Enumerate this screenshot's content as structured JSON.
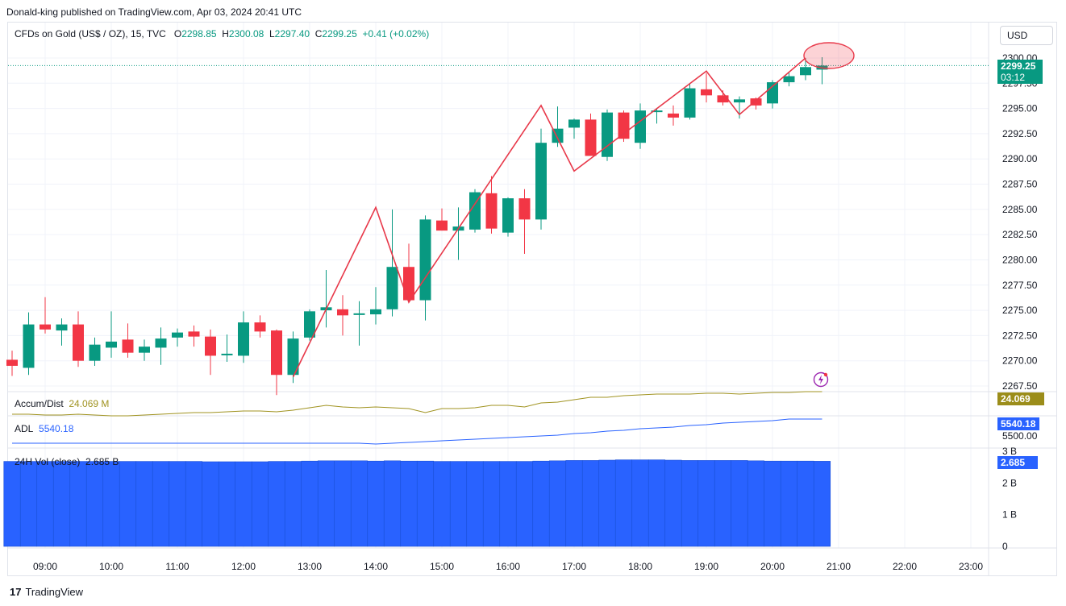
{
  "header": {
    "published": "Donald-king published on TradingView.com, Apr 03, 2024 20:41 UTC",
    "symbol": "CFDs on Gold (US$ / OZ), 15, TVC",
    "o_label": "O",
    "o_value": "2298.85",
    "h_label": "H",
    "h_value": "2300.08",
    "l_label": "L",
    "l_value": "2297.40",
    "c_label": "C",
    "c_value": "2299.25",
    "change": "+0.41 (+0.02%)"
  },
  "currency_button": "USD",
  "price_badge": {
    "price": "2299.25",
    "countdown": "03:12",
    "color": "#089981"
  },
  "price_axis": [
    "2300.00",
    "2297.50",
    "2295.00",
    "2292.50",
    "2290.00",
    "2287.50",
    "2285.00",
    "2282.50",
    "2280.00",
    "2277.50",
    "2275.00",
    "2272.50",
    "2270.00",
    "2267.50"
  ],
  "time_axis": [
    "09:00",
    "10:00",
    "11:00",
    "12:00",
    "13:00",
    "14:00",
    "15:00",
    "16:00",
    "17:00",
    "18:00",
    "19:00",
    "20:00",
    "21:00",
    "22:00",
    "23:00"
  ],
  "indicators": {
    "accum": {
      "label": "Accum/Dist",
      "value": "24.069 M",
      "badge": "24.069 M",
      "color": "#a09320"
    },
    "adl": {
      "label": "ADL",
      "value": "5540.18",
      "badge": "5540.18",
      "axis_label": "5500.00",
      "color": "#2962ff"
    },
    "vol": {
      "label": "24H Vol (close)",
      "value": "2.685 B",
      "badge": "2.685 B",
      "axis": [
        "3 B",
        "2 B",
        "1 B",
        "0"
      ],
      "color": "#2962ff"
    }
  },
  "colors": {
    "up": "#089981",
    "down": "#f23645",
    "drawing": "#e8394a"
  },
  "footer": {
    "brand": "TradingView"
  },
  "chart_data": {
    "type": "candlestick",
    "symbol": "CFDs on Gold (US$ / OZ), 15, TVC",
    "x_start_label": "08:30",
    "interval_minutes": 15,
    "ylim": [
      2266.5,
      2301.0
    ],
    "candles": [
      [
        2270.1,
        2271.0,
        2268.5,
        2269.5
      ],
      [
        2269.3,
        2274.8,
        2268.6,
        2273.6
      ],
      [
        2273.6,
        2276.3,
        2272.7,
        2273.1
      ],
      [
        2273.0,
        2274.2,
        2271.5,
        2273.6
      ],
      [
        2273.6,
        2274.9,
        2269.4,
        2270.0
      ],
      [
        2270.0,
        2272.3,
        2269.5,
        2271.6
      ],
      [
        2271.3,
        2274.9,
        2270.3,
        2271.9
      ],
      [
        2272.1,
        2273.7,
        2270.3,
        2270.8
      ],
      [
        2270.8,
        2272.1,
        2270.0,
        2271.4
      ],
      [
        2271.3,
        2273.3,
        2269.6,
        2272.2
      ],
      [
        2272.3,
        2273.2,
        2271.4,
        2272.8
      ],
      [
        2272.9,
        2273.5,
        2271.4,
        2272.4
      ],
      [
        2272.4,
        2273.1,
        2268.6,
        2270.5
      ],
      [
        2270.7,
        2272.6,
        2269.9,
        2270.7
      ],
      [
        2270.5,
        2274.9,
        2269.8,
        2273.8
      ],
      [
        2273.8,
        2274.5,
        2272.3,
        2272.9
      ],
      [
        2273.0,
        2273.1,
        2266.6,
        2268.6
      ],
      [
        2268.6,
        2272.9,
        2267.8,
        2272.2
      ],
      [
        2272.3,
        2275.1,
        2272.0,
        2274.9
      ],
      [
        2275.0,
        2279.0,
        2273.3,
        2275.3
      ],
      [
        2275.1,
        2276.5,
        2272.5,
        2274.5
      ],
      [
        2274.6,
        2275.9,
        2271.5,
        2274.7
      ],
      [
        2274.6,
        2277.3,
        2273.6,
        2275.1
      ],
      [
        2275.1,
        2285.0,
        2274.4,
        2279.3
      ],
      [
        2279.3,
        2281.6,
        2275.9,
        2276.0
      ],
      [
        2276.0,
        2284.4,
        2274.0,
        2284.0
      ],
      [
        2283.9,
        2285.1,
        2282.9,
        2282.9
      ],
      [
        2282.9,
        2285.2,
        2280.0,
        2283.3
      ],
      [
        2283.0,
        2287.0,
        2282.7,
        2286.7
      ],
      [
        2286.6,
        2288.3,
        2282.6,
        2283.1
      ],
      [
        2282.7,
        2286.2,
        2282.3,
        2286.1
      ],
      [
        2286.1,
        2287.0,
        2280.6,
        2284.0
      ],
      [
        2284.0,
        2293.0,
        2283.0,
        2291.6
      ],
      [
        2291.6,
        2295.2,
        2291.2,
        2293.0
      ],
      [
        2293.1,
        2294.0,
        2292.0,
        2293.9
      ],
      [
        2293.9,
        2294.5,
        2290.4,
        2290.3
      ],
      [
        2290.2,
        2294.9,
        2289.8,
        2294.6
      ],
      [
        2294.6,
        2294.8,
        2291.7,
        2292.0
      ],
      [
        2291.6,
        2295.5,
        2291.0,
        2294.8
      ],
      [
        2294.8,
        2295.0,
        2293.5,
        2294.8
      ],
      [
        2294.5,
        2295.3,
        2293.3,
        2294.1
      ],
      [
        2294.1,
        2297.4,
        2293.9,
        2297.0
      ],
      [
        2296.9,
        2298.5,
        2295.6,
        2296.3
      ],
      [
        2296.3,
        2296.8,
        2295.3,
        2295.6
      ],
      [
        2295.6,
        2296.2,
        2294.0,
        2295.9
      ],
      [
        2296.0,
        2296.1,
        2294.9,
        2295.3
      ],
      [
        2295.5,
        2297.8,
        2295.0,
        2297.6
      ],
      [
        2297.6,
        2298.6,
        2297.2,
        2298.2
      ],
      [
        2298.3,
        2300.0,
        2297.8,
        2299.1
      ],
      [
        2298.85,
        2300.08,
        2297.4,
        2299.25
      ]
    ],
    "pattern_line": [
      [
        "12:45",
        2268.4
      ],
      [
        "14:00",
        2285.2
      ],
      [
        "14:30",
        2275.8
      ],
      [
        "16:30",
        2295.3
      ],
      [
        "17:00",
        2288.8
      ],
      [
        "19:00",
        2298.7
      ],
      [
        "19:30",
        2294.4
      ],
      [
        "20:30",
        2300.0
      ]
    ],
    "last_price_line": 2299.25,
    "accum_dist": {
      "label": "Accum/Dist",
      "last": "24.069 M"
    },
    "adl": {
      "label": "ADL",
      "last": "5540.18"
    },
    "volume_24h": {
      "label": "24H Vol (close)",
      "last": "2.685 B"
    }
  }
}
